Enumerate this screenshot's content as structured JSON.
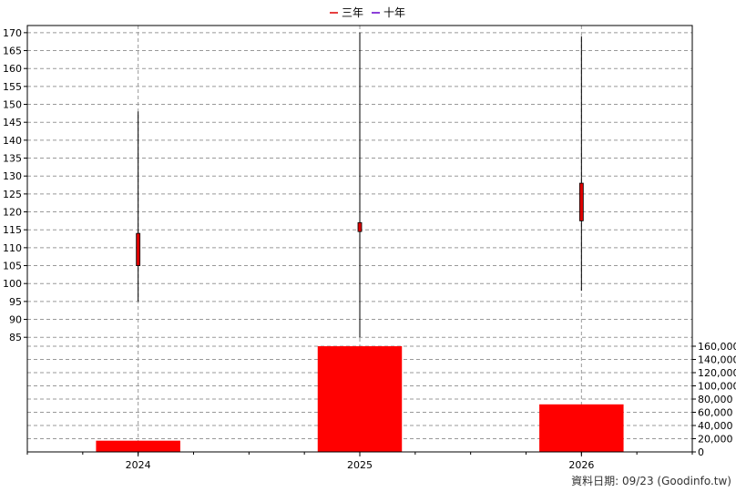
{
  "chart_data": {
    "type": "candlestick+bar",
    "legend": [
      {
        "label": "三年",
        "color": "#dd0000"
      },
      {
        "label": "十年",
        "color": "#6600cc"
      }
    ],
    "categories": [
      "2024",
      "2025",
      "2026"
    ],
    "price_axis": {
      "ylim": [
        82,
        172
      ],
      "ticks": [
        85,
        90,
        95,
        100,
        105,
        110,
        115,
        120,
        125,
        130,
        135,
        140,
        145,
        150,
        155,
        160,
        165,
        170
      ]
    },
    "volume_axis": {
      "ylim": [
        0,
        160000
      ],
      "ticks": [
        0,
        20000,
        40000,
        60000,
        80000,
        100000,
        120000,
        140000,
        160000
      ],
      "tick_labels": [
        "0",
        "20,000",
        "40,000",
        "60,000",
        "80,000",
        "100,000",
        "120,000",
        "140,000",
        "160,000"
      ]
    },
    "candles": [
      {
        "x": "2024",
        "open": 105,
        "close": 114,
        "high": 148,
        "low": 95
      },
      {
        "x": "2025",
        "open": 114.5,
        "close": 117,
        "high": 170,
        "low": 85
      },
      {
        "x": "2026",
        "open": 117.5,
        "close": 128,
        "high": 169,
        "low": 98
      }
    ],
    "volume": [
      {
        "x": "2024",
        "value": 17000
      },
      {
        "x": "2025",
        "value": 162000
      },
      {
        "x": "2026",
        "value": 72000
      }
    ],
    "colors": {
      "candle_fill": "#dd0000",
      "volume_fill": "#ff0000",
      "grid": "#999999"
    },
    "grid": true,
    "legend_position": "top-center"
  },
  "footer": "資料日期: 09/23  (Goodinfo.tw)"
}
